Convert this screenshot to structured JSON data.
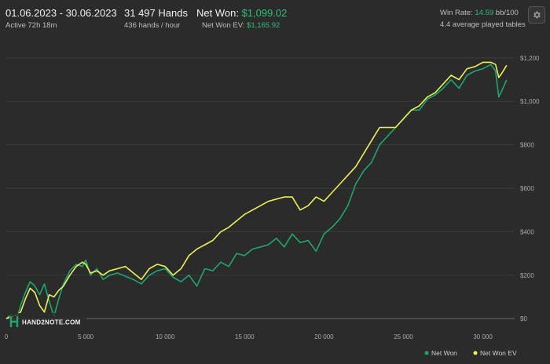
{
  "header": {
    "date_range": "01.06.2023 - 30.06.2023",
    "active": "Active 72h 18m",
    "hands": "31 497 Hands",
    "hands_per_hour": "436 hands / hour",
    "net_won_label": "Net Won: ",
    "net_won_value": "$1,099.02",
    "net_won_ev_label": "Net Won  EV: ",
    "net_won_ev_value": "$1,165.92",
    "win_rate_label": "Win Rate: ",
    "win_rate_value": "14.59",
    "win_rate_unit": " bb/100",
    "tables": "4.4 average played tables",
    "settings_icon": "gear-icon"
  },
  "logo": {
    "text": "HAND2NOTE.COM"
  },
  "colors": {
    "background": "#2b2b2b",
    "grid": "#3d3d3d",
    "net_won": "#1fa66e",
    "net_won_ev": "#eaf05a",
    "accent_green": "#2fbf7a"
  },
  "chart_data": {
    "type": "line",
    "xlim": [
      0,
      32000
    ],
    "ylim": [
      -50,
      1250
    ],
    "x_ticks": [
      {
        "value": 0,
        "label": "0"
      },
      {
        "value": 5000,
        "label": "5 000"
      },
      {
        "value": 10000,
        "label": "10 000"
      },
      {
        "value": 15000,
        "label": "15 000"
      },
      {
        "value": 20000,
        "label": "20 000"
      },
      {
        "value": 25000,
        "label": "25 000"
      },
      {
        "value": 30000,
        "label": "30 000"
      }
    ],
    "y_ticks": [
      {
        "value": 0,
        "label": "$0"
      },
      {
        "value": 200,
        "label": "$200"
      },
      {
        "value": 400,
        "label": "$400"
      },
      {
        "value": 600,
        "label": "$600"
      },
      {
        "value": 800,
        "label": "$800"
      },
      {
        "value": 1000,
        "label": "$1,000"
      },
      {
        "value": 1200,
        "label": "$1,200"
      }
    ],
    "grid": true,
    "legend_position": "bottom-right",
    "series": [
      {
        "name": "Net Won",
        "x": [
          0,
          300,
          600,
          900,
          1200,
          1500,
          1800,
          2100,
          2400,
          2700,
          3000,
          3300,
          3600,
          4000,
          4400,
          4800,
          5000,
          5300,
          5700,
          6100,
          6500,
          7000,
          7500,
          8000,
          8500,
          9000,
          9500,
          10000,
          10500,
          11000,
          11500,
          12000,
          12500,
          13000,
          13500,
          14000,
          14500,
          15000,
          15500,
          16000,
          16500,
          17000,
          17500,
          18000,
          18500,
          19000,
          19500,
          20000,
          20500,
          21000,
          21500,
          22000,
          22500,
          23000,
          23500,
          24000,
          24500,
          25000,
          25500,
          26000,
          26500,
          27000,
          27500,
          28000,
          28500,
          29000,
          29500,
          30000,
          30500,
          30800,
          31000,
          31200,
          31497
        ],
        "y": [
          0,
          20,
          -20,
          60,
          120,
          170,
          150,
          110,
          160,
          80,
          10,
          90,
          160,
          220,
          250,
          240,
          270,
          200,
          230,
          180,
          200,
          210,
          195,
          180,
          160,
          200,
          220,
          230,
          190,
          170,
          200,
          150,
          230,
          220,
          260,
          240,
          300,
          290,
          320,
          330,
          340,
          370,
          330,
          390,
          350,
          360,
          310,
          390,
          420,
          460,
          520,
          620,
          680,
          720,
          800,
          840,
          880,
          920,
          960,
          960,
          1010,
          1030,
          1060,
          1100,
          1060,
          1120,
          1140,
          1150,
          1170,
          1140,
          1020,
          1050,
          1099
        ]
      },
      {
        "name": "Net Won  EV",
        "x": [
          0,
          300,
          600,
          900,
          1200,
          1500,
          1800,
          2100,
          2400,
          2700,
          3000,
          3300,
          3600,
          4000,
          4400,
          4800,
          5000,
          5300,
          5700,
          6100,
          6500,
          7000,
          7500,
          8000,
          8500,
          9000,
          9500,
          10000,
          10500,
          11000,
          11500,
          12000,
          12500,
          13000,
          13500,
          14000,
          14500,
          15000,
          15500,
          16000,
          16500,
          17000,
          17500,
          18000,
          18500,
          19000,
          19500,
          20000,
          20500,
          21000,
          21500,
          22000,
          22500,
          23000,
          23500,
          24000,
          24500,
          25000,
          25500,
          26000,
          26500,
          27000,
          27500,
          28000,
          28500,
          29000,
          29500,
          30000,
          30500,
          30800,
          31000,
          31200,
          31497
        ],
        "y": [
          0,
          10,
          15,
          30,
          90,
          140,
          120,
          60,
          30,
          110,
          100,
          130,
          150,
          200,
          240,
          260,
          250,
          210,
          220,
          200,
          220,
          230,
          240,
          210,
          180,
          230,
          250,
          240,
          200,
          230,
          290,
          320,
          340,
          360,
          400,
          420,
          450,
          480,
          500,
          520,
          540,
          550,
          560,
          560,
          500,
          520,
          560,
          540,
          580,
          620,
          660,
          700,
          760,
          820,
          880,
          880,
          880,
          920,
          960,
          980,
          1020,
          1040,
          1080,
          1120,
          1100,
          1150,
          1160,
          1180,
          1180,
          1170,
          1110,
          1130,
          1166
        ]
      }
    ]
  }
}
